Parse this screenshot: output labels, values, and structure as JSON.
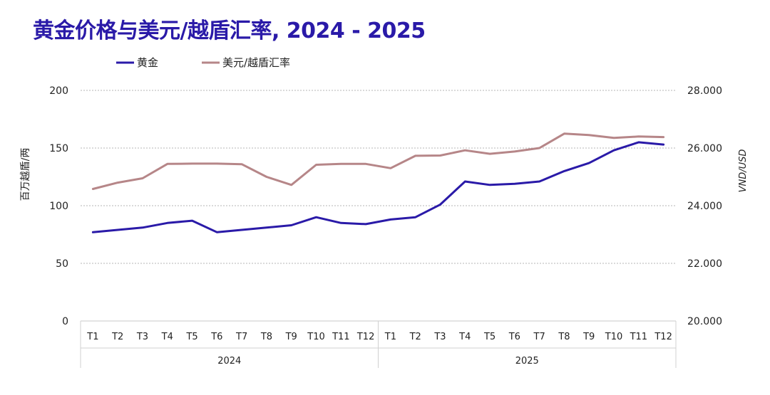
{
  "chart_data": {
    "type": "line",
    "title": "黄金价格与美元/越盾汇率, 2024 - 2025",
    "ylabel_left": "百万越盾/两",
    "ylabel_right": "VND/USD",
    "ylim_left": [
      0,
      200
    ],
    "ylim_right": [
      20000,
      28000
    ],
    "yticks_left": [
      "0",
      "50",
      "100",
      "150",
      "200"
    ],
    "yticks_right": [
      "20.000",
      "22.000",
      "24.000",
      "26.000",
      "28.000"
    ],
    "grid": true,
    "legend": "top-left",
    "categories": [
      "T1",
      "T2",
      "T3",
      "T4",
      "T5",
      "T6",
      "T7",
      "T8",
      "T9",
      "T10",
      "T11",
      "T12",
      "T1",
      "T2",
      "T3",
      "T4",
      "T5",
      "T6",
      "T7",
      "T8",
      "T9",
      "T10",
      "T11",
      "T12"
    ],
    "groups": [
      {
        "label": "2024",
        "count": 12
      },
      {
        "label": "2025",
        "count": 12
      }
    ],
    "series": [
      {
        "name": "黄金",
        "axis": "left",
        "color": "#2a1aa8",
        "values": [
          77,
          79,
          81,
          85,
          87,
          77,
          79,
          81,
          83,
          90,
          85,
          84,
          88,
          90,
          101,
          121,
          118,
          119,
          121,
          130,
          137,
          148,
          155,
          153
        ]
      },
      {
        "name": "美元/越盾汇率",
        "axis": "right",
        "color": "#b68688",
        "values": [
          24580,
          24800,
          24950,
          25450,
          25460,
          25460,
          25440,
          25000,
          24720,
          25420,
          25450,
          25450,
          25300,
          25730,
          25740,
          25920,
          25800,
          25880,
          26000,
          26500,
          26450,
          26350,
          26400,
          26380
        ]
      }
    ]
  }
}
